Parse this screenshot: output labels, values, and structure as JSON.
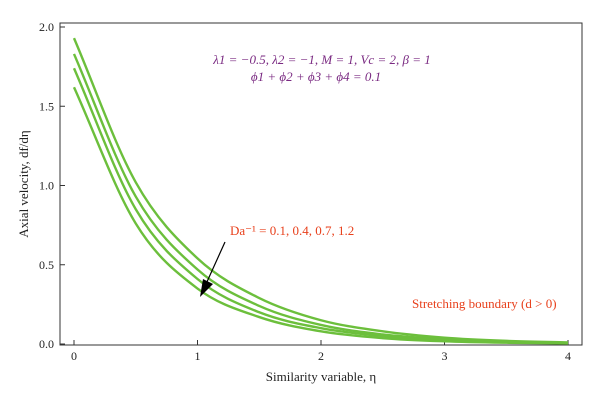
{
  "chart_data": {
    "type": "line",
    "xlabel": "Similarity variable, η",
    "ylabel": "Axial velocity, df/dη",
    "xlim": [
      0,
      4
    ],
    "ylim": [
      0,
      2.0
    ],
    "x_ticks": [
      "0",
      "1",
      "2",
      "3",
      "4"
    ],
    "y_ticks": [
      "0.0",
      "0.5",
      "1.0",
      "1.5",
      "2.0"
    ],
    "grid": false,
    "line_color": "#6cbf3c",
    "annotation_color": "#e8401c",
    "params_color": "#7a2a82",
    "params_line1": "λ1 = −0.5, λ2 = −1, M = 1, Vc = 2, β = 1",
    "params_line2": "ϕ1 + ϕ2 + ϕ3 + ϕ4 = 0.1",
    "da_label": "Da⁻¹ = 0.1, 0.4, 0.7, 1.2",
    "stretching_label": "Stretching boundary (d > 0)",
    "series": [
      {
        "x": [
          0,
          0.5,
          1,
          1.5,
          2,
          2.5,
          3,
          3.5,
          4
        ],
        "values": [
          1.93,
          1.02,
          0.54,
          0.29,
          0.15,
          0.08,
          0.04,
          0.02,
          0.01
        ]
      },
      {
        "x": [
          0,
          0.5,
          1,
          1.5,
          2,
          2.5,
          3,
          3.5,
          4
        ],
        "values": [
          1.83,
          0.93,
          0.47,
          0.24,
          0.12,
          0.06,
          0.03,
          0.015,
          0.008
        ]
      },
      {
        "x": [
          0,
          0.5,
          1,
          1.5,
          2,
          2.5,
          3,
          3.5,
          4
        ],
        "values": [
          1.74,
          0.85,
          0.41,
          0.2,
          0.1,
          0.05,
          0.024,
          0.012,
          0.006
        ]
      },
      {
        "x": [
          0,
          0.5,
          1,
          1.5,
          2,
          2.5,
          3,
          3.5,
          4
        ],
        "values": [
          1.62,
          0.76,
          0.35,
          0.17,
          0.08,
          0.037,
          0.017,
          0.008,
          0.004
        ]
      }
    ]
  }
}
